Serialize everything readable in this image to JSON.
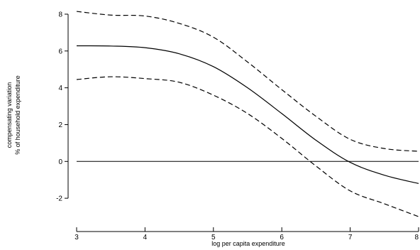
{
  "chart_data": {
    "type": "line",
    "title": "",
    "xlabel": "log per capita expenditure",
    "ylabel_lines": [
      "compensating variation",
      "% of household expenditure"
    ],
    "xlim": [
      3,
      8
    ],
    "ylim": [
      -3.5,
      8.5
    ],
    "x_ticks": [
      3,
      4,
      5,
      6,
      7,
      8
    ],
    "y_ticks": [
      -2,
      0,
      2,
      4,
      6,
      8
    ],
    "grid": false,
    "legend": "none",
    "reference_line": {
      "y": 0
    },
    "series": [
      {
        "style": "solid",
        "color": "#000000",
        "x": [
          3.0,
          3.5,
          4.0,
          4.5,
          5.0,
          5.5,
          6.0,
          6.5,
          7.0,
          7.5,
          8.0
        ],
        "y": [
          6.28,
          6.27,
          6.18,
          5.85,
          5.15,
          4.0,
          2.6,
          1.15,
          -0.05,
          -0.75,
          -1.2
        ]
      },
      {
        "style": "dashed",
        "color": "#000000",
        "x": [
          3.0,
          3.5,
          4.0,
          4.5,
          5.0,
          5.5,
          6.0,
          6.5,
          7.0,
          7.5,
          8.0
        ],
        "y": [
          8.15,
          7.95,
          7.9,
          7.5,
          6.75,
          5.4,
          3.9,
          2.45,
          1.2,
          0.7,
          0.55
        ]
      },
      {
        "style": "dashed",
        "color": "#000000",
        "x": [
          3.0,
          3.5,
          4.0,
          4.5,
          5.0,
          5.5,
          6.0,
          6.5,
          7.0,
          7.5,
          8.0
        ],
        "y": [
          4.45,
          4.6,
          4.5,
          4.3,
          3.6,
          2.6,
          1.25,
          -0.25,
          -1.6,
          -2.3,
          -3.0
        ]
      }
    ]
  }
}
